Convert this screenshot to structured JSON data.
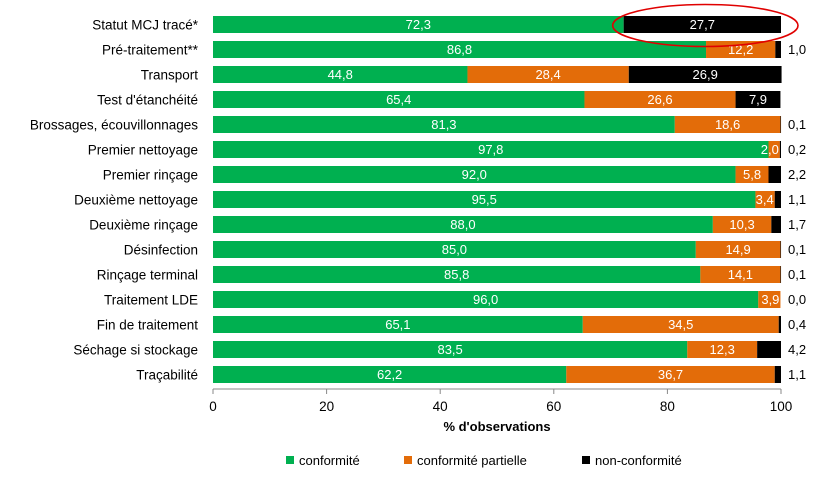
{
  "chart_data": {
    "type": "bar",
    "orientation": "horizontal",
    "stacked": true,
    "categories": [
      "Statut MCJ tracé*",
      "Pré-traitement**",
      "Transport",
      "Test d'étanchéité",
      "Brossages, écouvillonnages",
      "Premier nettoyage",
      "Premier rinçage",
      "Deuxième nettoyage",
      "Deuxième rinçage",
      "Désinfection",
      "Rinçage terminal",
      "Traitement LDE",
      "Fin de traitement",
      "Séchage si stockage",
      "Traçabilité"
    ],
    "series": [
      {
        "name": "conformité",
        "color": "#00b050",
        "values": [
          72.3,
          86.8,
          44.8,
          65.4,
          81.3,
          97.8,
          92.0,
          95.5,
          88.0,
          85.0,
          85.8,
          96.0,
          65.1,
          83.5,
          62.2
        ],
        "labels": [
          "72,3",
          "86,8",
          "44,8",
          "65,4",
          "81,3",
          "97,8",
          "92,0",
          "95,5",
          "88,0",
          "85,0",
          "85,8",
          "96,0",
          "65,1",
          "83,5",
          "62,2"
        ]
      },
      {
        "name": "conformité partielle",
        "color": "#e36c09",
        "values": [
          0,
          12.2,
          28.4,
          26.6,
          18.6,
          2.0,
          5.8,
          3.4,
          10.3,
          14.9,
          14.1,
          3.9,
          34.5,
          12.3,
          36.7
        ],
        "labels": [
          "",
          "12,2",
          "28,4",
          "26,6",
          "18,6",
          "2,0",
          "5,8",
          "3,4",
          "10,3",
          "14,9",
          "14,1",
          "3,9",
          "34,5",
          "12,3",
          "36,7"
        ]
      },
      {
        "name": "non-conformité",
        "color": "#000000",
        "values": [
          27.7,
          1.0,
          26.9,
          7.9,
          0.1,
          0.2,
          2.2,
          1.1,
          1.7,
          0.1,
          0.1,
          0.0,
          0.4,
          4.2,
          1.1
        ],
        "labels": [
          "27,7",
          "1,0",
          "26,9",
          "7,9",
          "0,1",
          "0,2",
          "2,2",
          "1,1",
          "1,7",
          "0,1",
          "0,1",
          "0,0",
          "0,4",
          "4,2",
          "1,1"
        ],
        "label_inside": [
          true,
          false,
          true,
          true,
          false,
          false,
          false,
          false,
          false,
          false,
          false,
          false,
          false,
          false,
          false
        ]
      }
    ],
    "xlabel": "% d'observations",
    "xlim": [
      0,
      100
    ],
    "xticks": [
      "0",
      "20",
      "40",
      "60",
      "80",
      "100"
    ],
    "legend_position": "bottom",
    "highlight": {
      "category": "Statut MCJ tracé*",
      "series": "non-conformité",
      "shape": "ellipse",
      "color": "#e00000"
    },
    "grid": false
  }
}
